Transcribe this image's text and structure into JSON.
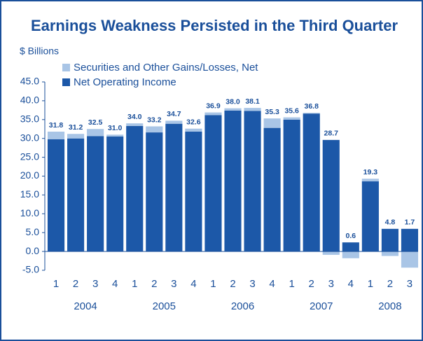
{
  "chart_data": {
    "type": "stacked_bar",
    "title": "Earnings Weakness Persisted in the Third Quarter",
    "y_axis_label": "$ Billions",
    "groups": [
      {
        "name": "2004",
        "quarters": [
          "1",
          "2",
          "3",
          "4"
        ]
      },
      {
        "name": "2005",
        "quarters": [
          "1",
          "2",
          "3",
          "4"
        ]
      },
      {
        "name": "2006",
        "quarters": [
          "1",
          "2",
          "3",
          "4"
        ]
      },
      {
        "name": "2007",
        "quarters": [
          "1",
          "2",
          "3",
          "4"
        ]
      },
      {
        "name": "2008",
        "quarters": [
          "1",
          "2",
          "3"
        ]
      }
    ],
    "series": [
      {
        "name": "Net Operating Income",
        "color": "#1c58a8",
        "values": [
          29.8,
          30.0,
          30.6,
          30.5,
          33.3,
          31.6,
          33.9,
          31.8,
          36.2,
          37.4,
          37.3,
          32.8,
          35.0,
          36.6,
          29.6,
          2.4,
          18.6,
          6.0,
          6.0
        ]
      },
      {
        "name": "Securities and Other Gains/Losses, Net",
        "color": "#a9c5e6",
        "values": [
          2.0,
          1.2,
          1.9,
          0.5,
          0.7,
          1.6,
          0.8,
          0.8,
          0.7,
          0.6,
          0.8,
          2.5,
          0.6,
          0.2,
          -0.9,
          -1.8,
          0.7,
          -1.2,
          -4.3
        ]
      }
    ],
    "bar_labels": [
      "31.8",
      "31.2",
      "32.5",
      "31.0",
      "34.0",
      "33.2",
      "34.7",
      "32.6",
      "36.9",
      "38.0",
      "38.1",
      "35.3",
      "35.6",
      "36.8",
      "28.7",
      "0.6",
      "19.3",
      "4.8",
      "1.7"
    ],
    "ylim": [
      -5,
      45
    ],
    "yticks": [
      {
        "value": -5,
        "label": "-5.0"
      },
      {
        "value": 0,
        "label": "0.0"
      },
      {
        "value": 5,
        "label": "5.0"
      },
      {
        "value": 10,
        "label": "10.0"
      },
      {
        "value": 15,
        "label": "15.0"
      },
      {
        "value": 20,
        "label": "20.0"
      },
      {
        "value": 25,
        "label": "25.0"
      },
      {
        "value": 30,
        "label": "30.0"
      },
      {
        "value": 35,
        "label": "35.0"
      },
      {
        "value": 40,
        "label": "40.0"
      },
      {
        "value": 45,
        "label": "45.0"
      }
    ],
    "grid": false
  }
}
